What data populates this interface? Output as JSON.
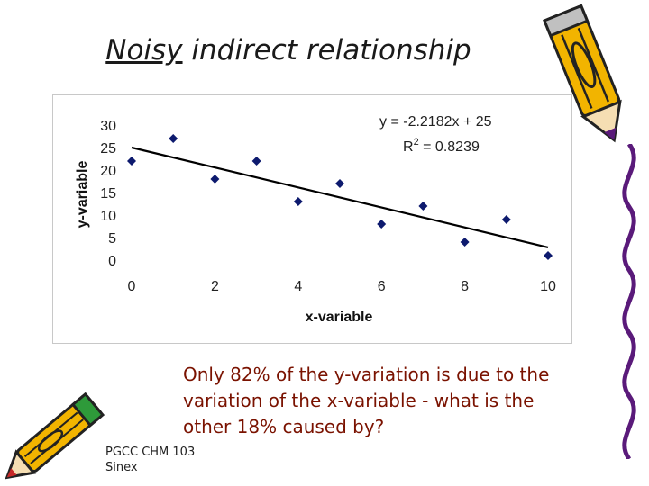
{
  "slide": {
    "title_underlined": "Noisy",
    "title_rest": " indirect relationship",
    "caption": "Only 82% of the y-variation is due to the variation of the x-variable - what is the other 18% caused by?",
    "footer_line1": "PGCC CHM 103",
    "footer_line2": "Sinex",
    "caption_color": "#7a1200"
  },
  "chart_data": {
    "type": "scatter",
    "title": "",
    "xlabel": "x-variable",
    "ylabel": "y-variable",
    "xlim": [
      0,
      10
    ],
    "ylim": [
      0,
      30
    ],
    "xticks": [
      0,
      2,
      4,
      6,
      8,
      10
    ],
    "yticks": [
      0,
      5,
      10,
      15,
      20,
      25,
      30
    ],
    "grid": false,
    "marker_color": "#0d1a6e",
    "points": [
      {
        "x": 0,
        "y": 22
      },
      {
        "x": 1,
        "y": 27
      },
      {
        "x": 2,
        "y": 18
      },
      {
        "x": 3,
        "y": 22
      },
      {
        "x": 4,
        "y": 13
      },
      {
        "x": 5,
        "y": 17
      },
      {
        "x": 6,
        "y": 8
      },
      {
        "x": 7,
        "y": 12
      },
      {
        "x": 8,
        "y": 4
      },
      {
        "x": 9,
        "y": 9
      },
      {
        "x": 10,
        "y": 1
      }
    ],
    "trendline": {
      "slope": -2.2182,
      "intercept": 25
    },
    "annotations": {
      "equation": "y = -2.2182x + 25",
      "r2_prefix": "R",
      "r2_sup": "2",
      "r2_suffix": " = 0.8239"
    }
  }
}
